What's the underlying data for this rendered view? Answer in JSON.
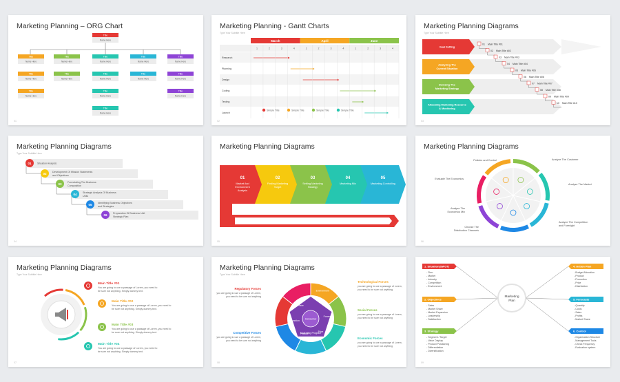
{
  "slides": [
    {
      "title": "Marketing Planning – ORG Chart",
      "num": "01"
    },
    {
      "title": "Marketing Planning - Gantt Charts",
      "subtitle": "Type Your Subtitle Here",
      "num": "02"
    },
    {
      "title": "Marketing Planning Diagrams",
      "subtitle": "Type Your Subtitle Here",
      "num": "03"
    },
    {
      "title": "Marketing Planning Diagrams",
      "subtitle": "Type Your Subtitle Here",
      "num": "04"
    },
    {
      "title": "Marketing Planning Diagrams",
      "num": "05"
    },
    {
      "title": "Marketing Planning Diagrams",
      "num": "06"
    },
    {
      "title": "Marketing Planning Diagrams",
      "subtitle": "Type Your Subtitle Here",
      "num": "07"
    },
    {
      "title": "Marketing Planning Diagrams",
      "subtitle": "Type Your Subtitle Here",
      "num": "08"
    },
    {
      "title": "Marketing Planning Diagrams",
      "num": "09"
    }
  ],
  "org": {
    "box_title": "Title",
    "box_name": "Name Here"
  },
  "gantt": {
    "months": [
      "March",
      "April",
      "June"
    ],
    "weeks": [
      "1",
      "2",
      "3",
      "4",
      "1",
      "2",
      "3",
      "4",
      "1",
      "2",
      "3",
      "4"
    ],
    "tasks": [
      "Research",
      "Planning",
      "Design",
      "Coding",
      "Testing",
      "Launch"
    ],
    "legend": [
      "Simple Title",
      "Simple Title",
      "Simple Title",
      "Simple Title"
    ]
  },
  "steps3": {
    "labels": [
      "Goal Setting",
      "Analyzing The Current Situation",
      "Devising The Marketing Strategy",
      "Allocating Marketing Resource & Monitoring"
    ],
    "items": [
      {
        "n": "01",
        "t": "Main Title #01"
      },
      {
        "n": "02",
        "t": "Main Title #02"
      },
      {
        "n": "03",
        "t": "Main Title #03"
      },
      {
        "n": "04",
        "t": "Main Title #04"
      },
      {
        "n": "05",
        "t": "Main Title #05"
      },
      {
        "n": "06",
        "t": "Main Title #06"
      },
      {
        "n": "07",
        "t": "Main Title #07"
      },
      {
        "n": "08",
        "t": "Main Title #08"
      },
      {
        "n": "09",
        "t": "Main Title #09"
      },
      {
        "n": "10",
        "t": "Main Title #10"
      }
    ]
  },
  "steps4": [
    {
      "n": "01",
      "t": "Situation Analysis"
    },
    {
      "n": "02",
      "t": "Development Of Mission Statements and Objectives"
    },
    {
      "n": "03",
      "t": "Formulating The Business Composition"
    },
    {
      "n": "04",
      "t": "Strategic Analysis Of Business Units"
    },
    {
      "n": "05",
      "t": "Identifying Business Objectives and Strategies"
    },
    {
      "n": "06",
      "t": "Preparation Of Business Unit Strategic Plan"
    }
  ],
  "arrows5": [
    {
      "n": "01",
      "t": "Market And Environment Analysis"
    },
    {
      "n": "02",
      "t": "Finding Marketing Target"
    },
    {
      "n": "03",
      "t": "Setting Marketing Strategy"
    },
    {
      "n": "04",
      "t": "Marketing Mix"
    },
    {
      "n": "05",
      "t": "Marketing Controlling"
    }
  ],
  "cycle6": [
    "Analyze The Customer",
    "Analyze The Market",
    "Analyze The Competition and Foresight",
    "Choose The Distribution Channels",
    "Analyze The Economics Mix",
    "Evaluate The Economics",
    "Policies and Control"
  ],
  "list7": {
    "items": [
      {
        "t": "Main Title #01",
        "d": "You are going to use a passage of Lorem, you need to be sure not anything. Simply dummy text."
      },
      {
        "t": "Main Title #02",
        "d": "You are going to use a passage of Lorem, you need to be sure not anything. Simply dummy text."
      },
      {
        "t": "Main Title #03",
        "d": "You are going to use a passage of Lorem, you need to be sure not anything. Simply dummy text."
      },
      {
        "t": "Main Title #04",
        "d": "You are going to use a passage of Lorem, you need to be sure not anything. Simply dummy text."
      }
    ]
  },
  "forces8": {
    "left": [
      {
        "t": "Regulatory Forces",
        "d": "you are going to use a passage of Lorem, you need to be sure not anything"
      },
      {
        "t": "Competitive Forces",
        "d": "you are going to use a passage of Lorem, you need to be sure not anything"
      }
    ],
    "right": [
      {
        "t": "Technological Forces",
        "d": "you are going to use a passage of Lorem, you need to be sure not anything"
      },
      {
        "t": "Social Forces",
        "d": "you are going to use a passage of Lorem, you need to be sure not anything"
      },
      {
        "t": "Economic Forces",
        "d": "you are going to use a passage of Lorem, you need to be sure not anything"
      }
    ],
    "ring": [
      "Environment",
      "Forces",
      "Price",
      "Product",
      "Promotion",
      "Place"
    ],
    "center1": "Consumer",
    "center2": "Marketing Program"
  },
  "mind9": {
    "center": "Marketing Plan",
    "left": [
      {
        "t": "1. Situation(SWOT)",
        "items": [
          "Firm",
          "Market",
          "Industry",
          "Competition",
          "Environment"
        ]
      },
      {
        "t": "2. Objectives",
        "items": [
          "Sales",
          "Market Share",
          "Market Expansion",
          "Leadership",
          "Satisfaction"
        ]
      },
      {
        "t": "3. Strategy",
        "items": [
          "Segment / Target",
          "Value Display",
          "Product Positioning",
          "Differentiation",
          "Diversification"
        ]
      }
    ],
    "right": [
      {
        "t": "4. Action Plan",
        "items": [
          "Budget Allocation",
          "Product",
          "Promotion",
          "Price",
          "Distribution"
        ]
      },
      {
        "t": "5. Forecasts",
        "items": [
          "Quantity",
          "Costs",
          "Sales",
          "Profits",
          "Market Share"
        ]
      },
      {
        "t": "6. Control",
        "items": [
          "Organization Structure",
          "Management Tools",
          "Check Frequency",
          "Evaluation system"
        ]
      }
    ]
  }
}
